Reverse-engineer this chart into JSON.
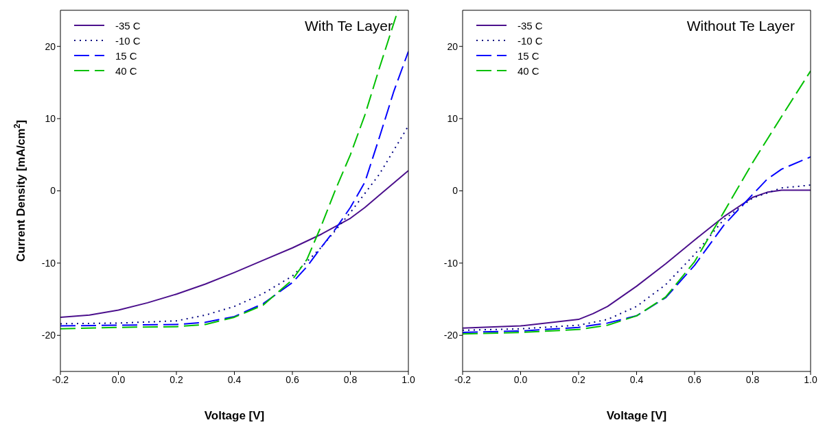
{
  "chart_data": [
    {
      "type": "line",
      "title": "With Te Layer",
      "xlabel": "Voltage [V]",
      "ylabel": "Current Density [mA/cm$^{2}$]",
      "xlim": [
        -0.2,
        1.0
      ],
      "ylim": [
        -25,
        25
      ],
      "xticks": [
        {
          "value": -0.2,
          "label": "-0.2"
        },
        {
          "value": 0,
          "label": "0.0"
        },
        {
          "value": 0.2,
          "label": "0.2"
        },
        {
          "value": 0.4,
          "label": "0.4"
        },
        {
          "value": 0.6,
          "label": "0.6"
        },
        {
          "value": 0.8,
          "label": "0.8"
        },
        {
          "value": 1.0,
          "label": "1.0"
        }
      ],
      "yticks": [
        -20,
        -10,
        0,
        10,
        20
      ],
      "legend": "top left",
      "marker": "none",
      "series": [
        {
          "name": "-35 C",
          "color": "#4b0f8c",
          "line_style": "solid",
          "x": [
            -0.2,
            -0.1,
            0,
            0.1,
            0.2,
            0.3,
            0.4,
            0.5,
            0.6,
            0.7,
            0.8,
            0.85,
            0.9,
            1.0
          ],
          "values": [
            -17.5,
            -17.2,
            -16.5,
            -15.5,
            -14.3,
            -12.9,
            -11.3,
            -9.6,
            -7.9,
            -6.0,
            -3.8,
            -2.3,
            -0.6,
            2.8
          ]
        },
        {
          "name": "-10 C",
          "color": "#000080",
          "line_style": "dotted",
          "x": [
            -0.2,
            0,
            0.2,
            0.3,
            0.4,
            0.5,
            0.6,
            0.7,
            0.8,
            0.9,
            1.0
          ],
          "values": [
            -18.4,
            -18.3,
            -18.0,
            -17.2,
            -16.0,
            -14.2,
            -11.8,
            -7.8,
            -3.0,
            2.3,
            9.0
          ]
        },
        {
          "name": "15 C",
          "color": "#0000ff",
          "line_style": "dashed",
          "x": [
            -0.2,
            0,
            0.2,
            0.3,
            0.4,
            0.5,
            0.6,
            0.65,
            0.7,
            0.75,
            0.8,
            0.85,
            0.9,
            0.95,
            1.0
          ],
          "values": [
            -18.7,
            -18.6,
            -18.5,
            -18.2,
            -17.4,
            -15.6,
            -12.7,
            -10.5,
            -7.8,
            -5.2,
            -2.3,
            1.2,
            7.4,
            13.8,
            19.3
          ]
        },
        {
          "name": "40 C",
          "color": "#00c000",
          "line_style": "dashed",
          "x": [
            -0.2,
            0,
            0.2,
            0.3,
            0.4,
            0.5,
            0.6,
            0.65,
            0.7,
            0.75,
            0.8,
            0.85,
            0.9,
            0.964
          ],
          "values": [
            -19.1,
            -18.9,
            -18.8,
            -18.5,
            -17.5,
            -15.8,
            -12.3,
            -9.5,
            -4.8,
            0.3,
            5.0,
            10.5,
            17.0,
            25.0
          ]
        }
      ]
    },
    {
      "type": "line",
      "title": "Without Te Layer",
      "xlabel": "Voltage [V]",
      "xlim": [
        -0.2,
        1.0
      ],
      "ylim": [
        -25,
        25
      ],
      "xticks": [
        {
          "value": -0.2,
          "label": "-0.2"
        },
        {
          "value": 0,
          "label": "0.0"
        },
        {
          "value": 0.2,
          "label": "0.2"
        },
        {
          "value": 0.4,
          "label": "0.4"
        },
        {
          "value": 0.6,
          "label": "0.6"
        },
        {
          "value": 0.8,
          "label": "0.8"
        },
        {
          "value": 1.0,
          "label": "1.0"
        }
      ],
      "yticks": [
        -20,
        -10,
        0,
        10,
        20
      ],
      "legend": "top left",
      "marker": "none",
      "series": [
        {
          "name": "-35 C",
          "color": "#4b0f8c",
          "line_style": "solid",
          "x": [
            -0.2,
            0,
            0.2,
            0.25,
            0.3,
            0.35,
            0.4,
            0.5,
            0.6,
            0.7,
            0.8,
            0.85,
            0.9,
            1.0
          ],
          "values": [
            -19.0,
            -18.7,
            -17.8,
            -17.0,
            -16.0,
            -14.6,
            -13.2,
            -10.1,
            -6.8,
            -3.6,
            -0.9,
            -0.2,
            0.1,
            0.1
          ]
        },
        {
          "name": "-10 C",
          "color": "#000080",
          "line_style": "dotted",
          "x": [
            -0.2,
            0,
            0.2,
            0.3,
            0.4,
            0.5,
            0.6,
            0.7,
            0.8,
            0.9,
            1.0
          ],
          "values": [
            -19.3,
            -19.1,
            -18.6,
            -17.8,
            -16.0,
            -13.0,
            -8.8,
            -4.0,
            -1.0,
            0.4,
            0.8
          ]
        },
        {
          "name": "15 C",
          "color": "#0000ff",
          "line_style": "dashed",
          "x": [
            -0.2,
            0,
            0.2,
            0.3,
            0.4,
            0.5,
            0.6,
            0.7,
            0.8,
            0.85,
            0.9,
            1.0
          ],
          "values": [
            -19.6,
            -19.4,
            -18.9,
            -18.3,
            -17.3,
            -14.8,
            -10.3,
            -4.8,
            -0.5,
            1.6,
            3.0,
            4.7
          ]
        },
        {
          "name": "40 C",
          "color": "#00c000",
          "line_style": "dashed",
          "x": [
            -0.2,
            0,
            0.2,
            0.3,
            0.4,
            0.5,
            0.6,
            0.7,
            0.8,
            0.9,
            1.0
          ],
          "values": [
            -19.8,
            -19.6,
            -19.2,
            -18.6,
            -17.3,
            -14.7,
            -9.8,
            -3.0,
            3.9,
            10.3,
            16.6
          ]
        }
      ]
    }
  ]
}
